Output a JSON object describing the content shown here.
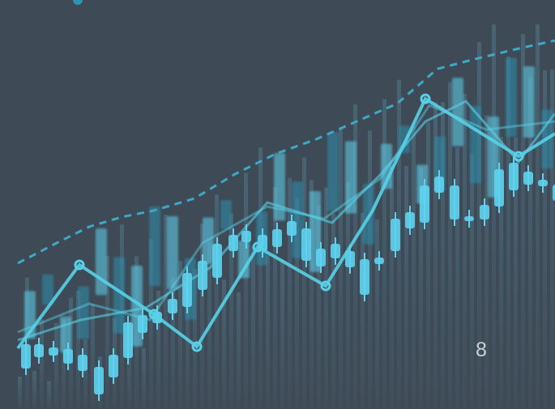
{
  "slide": {
    "page_number": "8"
  },
  "colors": {
    "background": "#3e4a55",
    "candle_light": "#5fd3ef",
    "candle_dark": "#2f8fae",
    "bar_backdrop": "#4a6676",
    "line": "#58d2e8",
    "dashed_trend": "#3ea9c7",
    "page_number": "#c9d0d6"
  },
  "icons": {
    "artwork": "stock-candlestick-illustration"
  }
}
